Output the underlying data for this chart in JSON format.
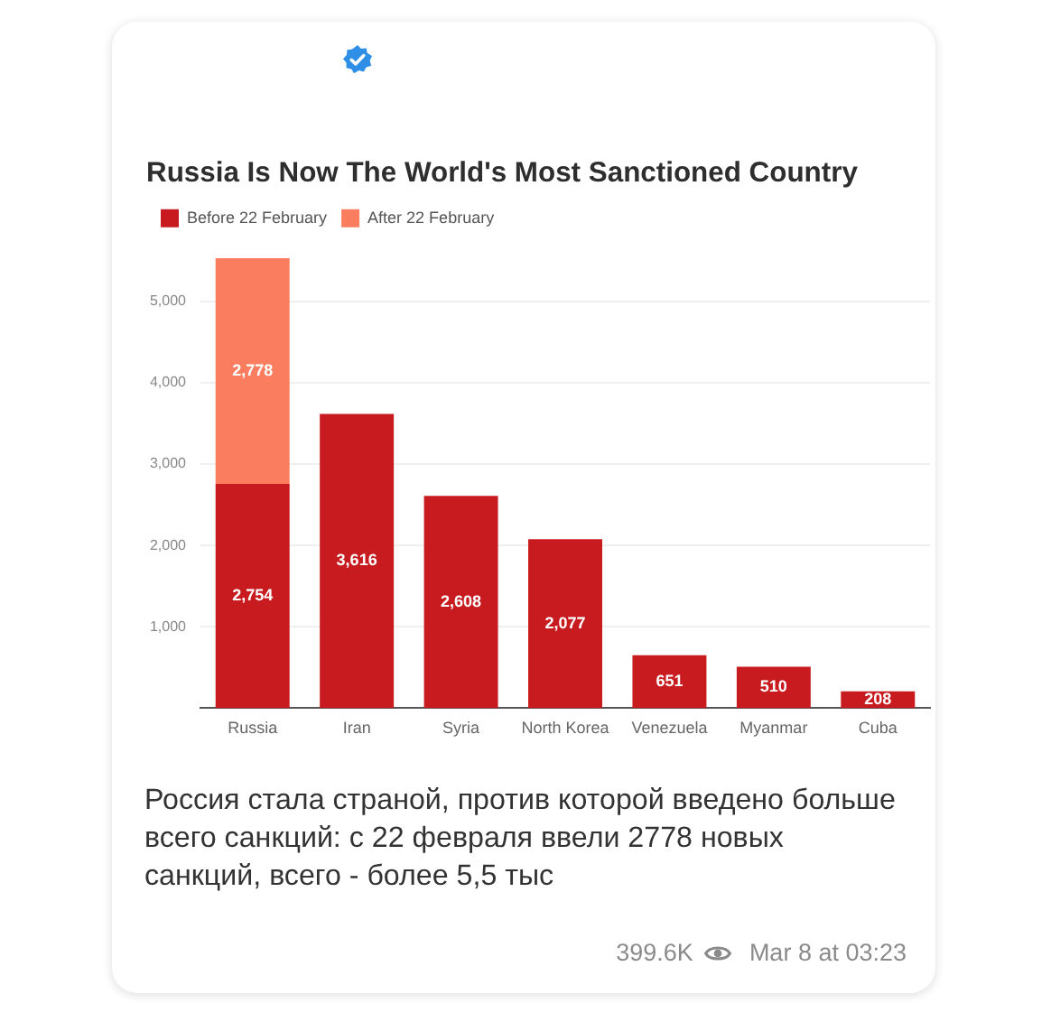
{
  "chart_data": {
    "type": "bar",
    "title": "Russia Is Now The World's Most Sanctioned Country",
    "categories": [
      "Russia",
      "Iran",
      "Syria",
      "North Korea",
      "Venezuela",
      "Myanmar",
      "Cuba"
    ],
    "series": [
      {
        "name": "Before 22 February",
        "color": "#c81b1f",
        "values": [
          2754,
          3616,
          2608,
          2077,
          651,
          510,
          208
        ],
        "value_labels": [
          "2,754",
          "3,616",
          "2,608",
          "2,077",
          "651",
          "510",
          "208"
        ]
      },
      {
        "name": "After 22 February",
        "color": "#fa7d5f",
        "values": [
          2778,
          null,
          null,
          null,
          null,
          null,
          null
        ],
        "value_labels": [
          "2,778",
          null,
          null,
          null,
          null,
          null,
          null
        ]
      }
    ],
    "stacked": true,
    "ylim": [
      0,
      5532
    ],
    "yticks": [
      {
        "value": 1000,
        "label": "1,000"
      },
      {
        "value": 2000,
        "label": "2,000"
      },
      {
        "value": 3000,
        "label": "3,000"
      },
      {
        "value": 4000,
        "label": "4,000"
      },
      {
        "value": 5000,
        "label": "5,000"
      }
    ],
    "grid": "y",
    "legend": "top left",
    "annotations": [
      "Россия стала страной, против которой введено больше всего санкций: с 22 февраля ввели 2778 новых санкций, всего - более 5,5 тыс",
      "399.6K",
      "Mar 8 at 03:23"
    ]
  }
}
